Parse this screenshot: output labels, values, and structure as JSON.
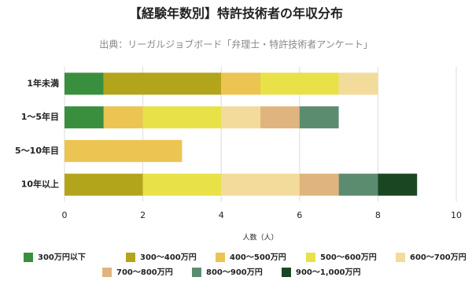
{
  "chart_data": {
    "type": "stacked-bar-horizontal",
    "title": "【経験年数別】特許技術者の年収分布",
    "subtitle": "出典：リーガルジョブボード「弁理士・特許技術者アンケート」",
    "x_label": "人数（人）",
    "categories": [
      "1年未満",
      "1〜5年目",
      "5〜10年目",
      "10年以上"
    ],
    "series": [
      {
        "name": "300万円以下",
        "color": "#3a8f3f",
        "values": [
          1,
          1,
          0,
          0
        ]
      },
      {
        "name": "300〜400万円",
        "color": "#b3a51b",
        "values": [
          3,
          0,
          0,
          2
        ]
      },
      {
        "name": "400〜500万円",
        "color": "#ebc452",
        "values": [
          1,
          1,
          3,
          0
        ]
      },
      {
        "name": "500〜600万円",
        "color": "#e8e148",
        "values": [
          2,
          2,
          0,
          2
        ]
      },
      {
        "name": "600〜700万円",
        "color": "#f3db9b",
        "values": [
          1,
          1,
          0,
          2
        ]
      },
      {
        "name": "700〜800万円",
        "color": "#e0b47f",
        "values": [
          0,
          1,
          0,
          1
        ]
      },
      {
        "name": "800〜900万円",
        "color": "#5c8c70",
        "values": [
          0,
          1,
          0,
          1
        ]
      },
      {
        "name": "900〜1,000万円",
        "color": "#1b4622",
        "values": [
          0,
          0,
          0,
          1
        ]
      }
    ],
    "xlim": [
      0,
      10
    ],
    "xticks": [
      0,
      2,
      4,
      6,
      8,
      10
    ],
    "grid": true
  }
}
